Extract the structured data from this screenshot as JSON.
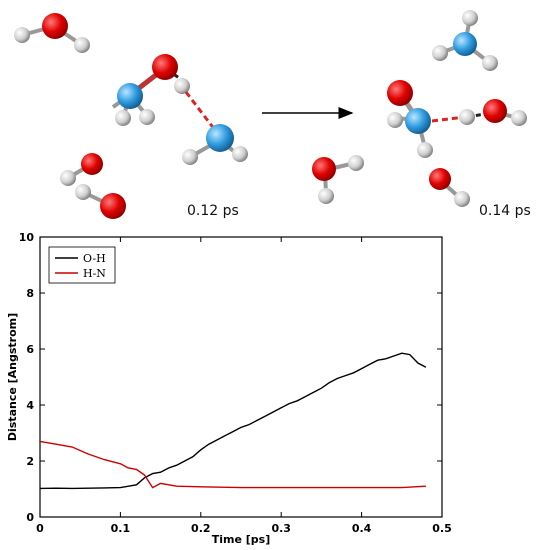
{
  "snapshots": [
    {
      "label": "0.12 ps"
    },
    {
      "label": "0.14 ps"
    }
  ],
  "chart_data": {
    "type": "line",
    "xlabel": "Time [ps]",
    "ylabel": "Distance [Angstrom]",
    "xlim": [
      0,
      0.5
    ],
    "ylim": [
      0,
      10
    ],
    "xticks": [
      0,
      0.1,
      0.2,
      0.3,
      0.4,
      0.5
    ],
    "yticks": [
      0,
      2,
      4,
      6,
      8,
      10
    ],
    "xtick_labels": [
      "0",
      "0.1",
      "0.2",
      "0.3",
      "0.4",
      "0.5"
    ],
    "ytick_labels": [
      "0",
      "2",
      "4",
      "6",
      "8",
      "10"
    ],
    "grid": false,
    "legend_position": "top-left",
    "series": [
      {
        "name": "O-H",
        "color": "#000000",
        "x": [
          0.0,
          0.02,
          0.04,
          0.06,
          0.08,
          0.1,
          0.12,
          0.13,
          0.14,
          0.15,
          0.16,
          0.17,
          0.18,
          0.19,
          0.2,
          0.21,
          0.22,
          0.23,
          0.24,
          0.25,
          0.26,
          0.27,
          0.28,
          0.29,
          0.3,
          0.31,
          0.32,
          0.33,
          0.34,
          0.35,
          0.36,
          0.37,
          0.38,
          0.39,
          0.4,
          0.41,
          0.42,
          0.43,
          0.44,
          0.45,
          0.46,
          0.47,
          0.48
        ],
        "y": [
          1.02,
          1.03,
          1.02,
          1.03,
          1.04,
          1.05,
          1.15,
          1.4,
          1.55,
          1.6,
          1.75,
          1.85,
          2.0,
          2.15,
          2.4,
          2.6,
          2.75,
          2.9,
          3.05,
          3.2,
          3.3,
          3.45,
          3.6,
          3.75,
          3.9,
          4.05,
          4.15,
          4.3,
          4.45,
          4.6,
          4.8,
          4.95,
          5.05,
          5.15,
          5.3,
          5.45,
          5.6,
          5.65,
          5.75,
          5.85,
          5.8,
          5.5,
          5.35
        ]
      },
      {
        "name": "H-N",
        "color": "#cc0000",
        "x": [
          0.0,
          0.02,
          0.04,
          0.06,
          0.08,
          0.1,
          0.11,
          0.12,
          0.13,
          0.14,
          0.15,
          0.17,
          0.2,
          0.25,
          0.3,
          0.35,
          0.4,
          0.45,
          0.48
        ],
        "y": [
          2.7,
          2.6,
          2.5,
          2.25,
          2.05,
          1.9,
          1.75,
          1.7,
          1.5,
          1.05,
          1.2,
          1.1,
          1.08,
          1.05,
          1.05,
          1.05,
          1.05,
          1.05,
          1.1
        ]
      }
    ]
  }
}
